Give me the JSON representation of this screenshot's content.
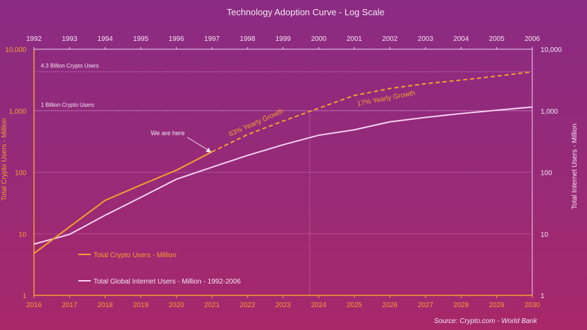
{
  "chart_data": {
    "type": "line",
    "title": "Technology Adoption Curve - Log Scale",
    "source": "Source: Crypto.com - World Bank",
    "y_scale": "log",
    "ylim": [
      1,
      10000
    ],
    "y_ticks": [
      "1",
      "10",
      "100",
      "1,000",
      "10,000"
    ],
    "y_tick_values": [
      1,
      10,
      100,
      1000,
      10000
    ],
    "ylabel_left": "Total Crypto Users - Million",
    "ylabel_right": "Total Internet Users - Million",
    "x_bottom": [
      "2016",
      "2017",
      "2018",
      "2019",
      "2020",
      "2021",
      "2022",
      "2023",
      "2024",
      "2025",
      "2026",
      "2027",
      "2028",
      "2029",
      "2030"
    ],
    "x_top": [
      "1992",
      "1993",
      "1994",
      "1995",
      "1996",
      "1997",
      "1998",
      "1999",
      "2000",
      "2001",
      "2002",
      "2003",
      "2004",
      "2005",
      "2006"
    ],
    "reference_lines": [
      {
        "label": "4.3 Billion Crypto Users",
        "value": 4300
      },
      {
        "label": "1 Billion Crypto Users",
        "value": 1000
      }
    ],
    "now_marker_x": 2023.75,
    "colors": {
      "crypto": "#f5a030",
      "internet": "#f6d2f2",
      "text": "#f3e6f3"
    },
    "series": [
      {
        "name": "Total Crypto Users - Million",
        "axis": "bottom",
        "solid": {
          "x": [
            2016,
            2017,
            2018,
            2019,
            2020,
            2021
          ],
          "values": [
            4.8,
            13,
            35,
            62,
            108,
            215
          ]
        },
        "dashed": {
          "x": [
            2021,
            2022,
            2023,
            2024,
            2025,
            2026,
            2027,
            2028,
            2029,
            2030
          ],
          "values": [
            215,
            410,
            680,
            1100,
            1770,
            2300,
            2750,
            3150,
            3650,
            4300
          ]
        }
      },
      {
        "name": "Total Global Internet Users - Million - 1992-2006",
        "axis": "top",
        "x": [
          1992,
          1993,
          1994,
          1995,
          1996,
          1997,
          1998,
          1999,
          2000,
          2001,
          2002,
          2003,
          2004,
          2005,
          2006
        ],
        "values": [
          6.8,
          9.8,
          20,
          39,
          77,
          121,
          188,
          280,
          400,
          490,
          660,
          780,
          900,
          1020,
          1150
        ]
      }
    ],
    "annotations": [
      {
        "text": "We are here"
      },
      {
        "text": "63% Yearly Growth"
      },
      {
        "text": "17% Yearly Growth"
      }
    ]
  }
}
